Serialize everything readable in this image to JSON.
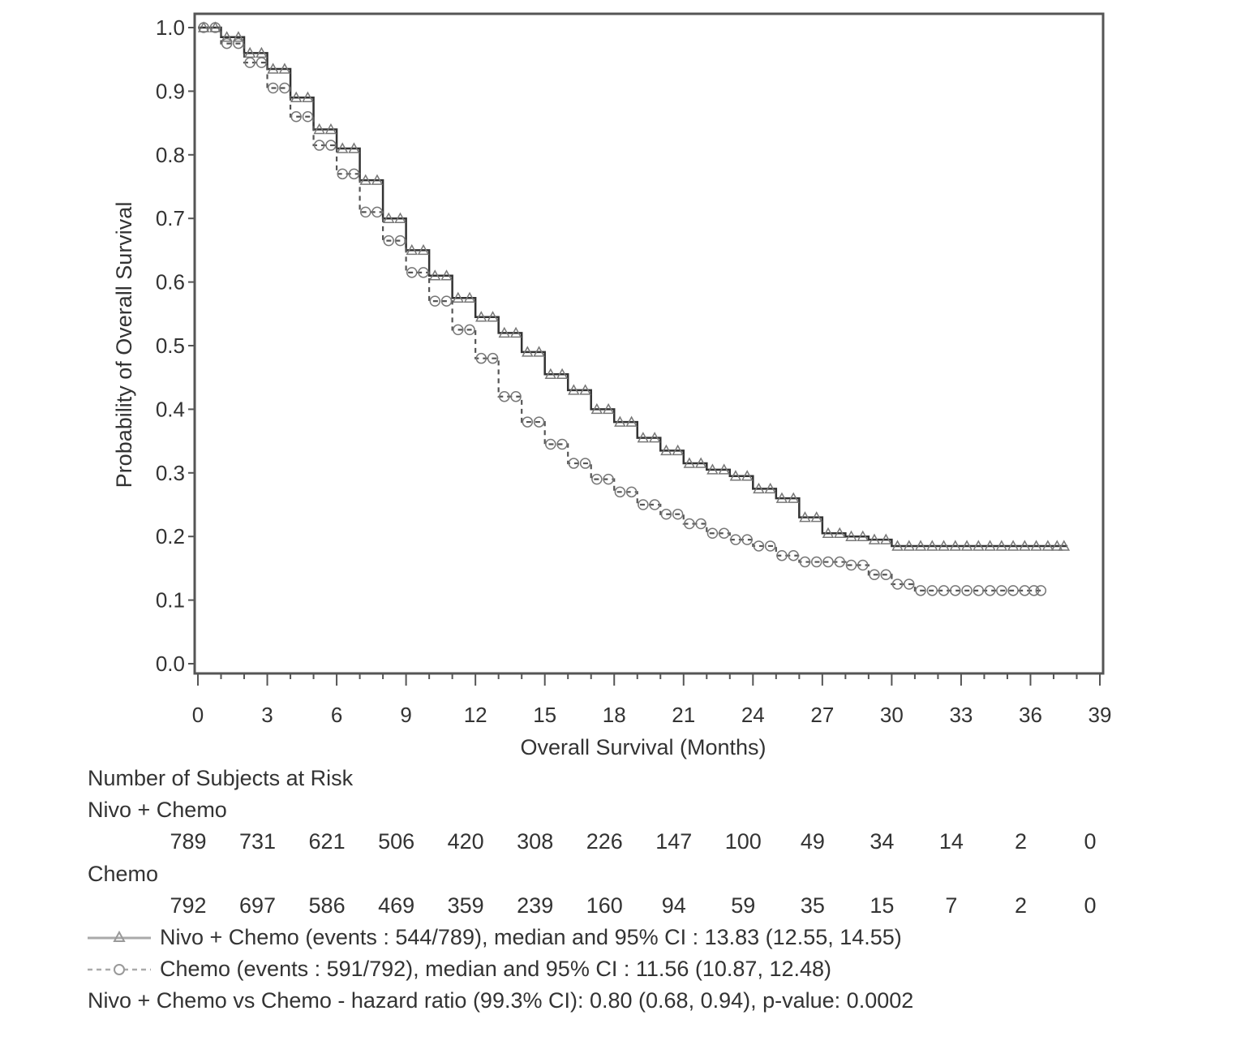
{
  "chart_data": {
    "type": "line",
    "subtype": "kaplan-meier",
    "title": "",
    "xlabel": "Overall Survival (Months)",
    "ylabel": "Probability of Overall Survival",
    "xlim": [
      0,
      39
    ],
    "ylim": [
      0.0,
      1.0
    ],
    "x_ticks": [
      0,
      3,
      6,
      9,
      12,
      15,
      18,
      21,
      24,
      27,
      30,
      33,
      36,
      39
    ],
    "x_tick_labels": [
      "0",
      "3",
      "6",
      "9",
      "12",
      "15",
      "18",
      "21",
      "24",
      "27",
      "30",
      "33",
      "36",
      "39"
    ],
    "y_ticks": [
      0.0,
      0.1,
      0.2,
      0.3,
      0.4,
      0.5,
      0.6,
      0.7,
      0.8,
      0.9,
      1.0
    ],
    "y_tick_labels": [
      "0.0",
      "0.1",
      "0.2",
      "0.3",
      "0.4",
      "0.5",
      "0.6",
      "0.7",
      "0.8",
      "0.9",
      "1.0"
    ],
    "grid": false,
    "legend_position": "below",
    "series": [
      {
        "name": "Nivo + Chemo",
        "line_style": "solid",
        "marker": "triangle",
        "color": "#333333",
        "x": [
          0,
          1,
          2,
          3,
          4,
          5,
          6,
          7,
          8,
          9,
          10,
          11,
          12,
          13,
          14,
          15,
          16,
          17,
          18,
          19,
          20,
          21,
          22,
          23,
          24,
          25,
          26,
          27,
          28,
          29,
          30,
          31,
          32,
          33,
          34,
          35,
          36,
          37,
          37.6
        ],
        "values": [
          1.0,
          0.985,
          0.96,
          0.935,
          0.89,
          0.84,
          0.81,
          0.76,
          0.7,
          0.65,
          0.61,
          0.575,
          0.545,
          0.52,
          0.49,
          0.455,
          0.43,
          0.4,
          0.38,
          0.355,
          0.335,
          0.315,
          0.305,
          0.295,
          0.275,
          0.26,
          0.23,
          0.205,
          0.2,
          0.195,
          0.185,
          0.185,
          0.185,
          0.185,
          0.185,
          0.185,
          0.185,
          0.185,
          0.185
        ]
      },
      {
        "name": "Chemo",
        "line_style": "dashed",
        "marker": "circle",
        "color": "#555555",
        "x": [
          0,
          1,
          2,
          3,
          4,
          5,
          6,
          7,
          8,
          9,
          10,
          11,
          12,
          13,
          14,
          15,
          16,
          17,
          18,
          19,
          20,
          21,
          22,
          23,
          24,
          25,
          26,
          27,
          28,
          29,
          30,
          31,
          32,
          33,
          34,
          35,
          36,
          36.6
        ],
        "values": [
          1.0,
          0.975,
          0.945,
          0.905,
          0.86,
          0.815,
          0.77,
          0.71,
          0.665,
          0.615,
          0.57,
          0.525,
          0.48,
          0.42,
          0.38,
          0.345,
          0.315,
          0.29,
          0.27,
          0.25,
          0.235,
          0.22,
          0.205,
          0.195,
          0.185,
          0.17,
          0.16,
          0.16,
          0.155,
          0.14,
          0.125,
          0.115,
          0.115,
          0.115,
          0.115,
          0.115,
          0.115,
          0.115
        ]
      }
    ],
    "risk_table": {
      "title": "Number of Subjects at Risk",
      "timepoints": [
        0,
        3,
        6,
        9,
        12,
        15,
        18,
        21,
        24,
        27,
        30,
        33,
        36,
        39
      ],
      "rows": [
        {
          "label": "Nivo + Chemo",
          "values": [
            789,
            731,
            621,
            506,
            420,
            308,
            226,
            147,
            100,
            49,
            34,
            14,
            2,
            0
          ]
        },
        {
          "label": "Chemo",
          "values": [
            792,
            697,
            586,
            469,
            359,
            239,
            160,
            94,
            59,
            35,
            15,
            7,
            2,
            0
          ]
        }
      ]
    },
    "legend": [
      "Nivo + Chemo (events : 544/789), median and 95% CI : 13.83 (12.55, 14.55)",
      "Chemo (events : 591/792), median and 95% CI : 11.56 (10.87, 12.48)"
    ],
    "annotation": "Nivo + Chemo vs Chemo - hazard ratio (99.3% CI): 0.80 (0.68, 0.94), p-value: 0.0002"
  }
}
